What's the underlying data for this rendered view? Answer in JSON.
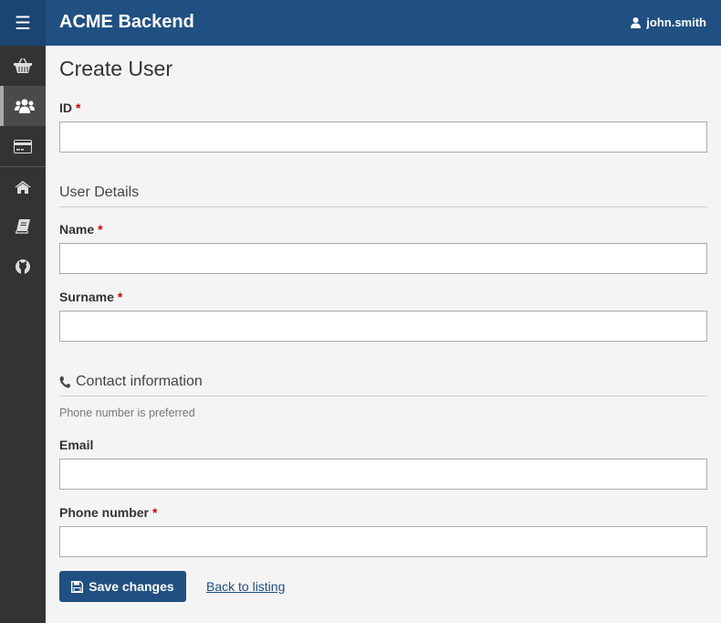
{
  "header": {
    "menu_icon": "hamburger-icon",
    "title": "ACME Backend",
    "user_icon": "user-icon",
    "username": "john.smith",
    "color": "#205081"
  },
  "sidebar": {
    "items": [
      {
        "icon": "basket-icon",
        "active": false
      },
      {
        "icon": "users-icon",
        "active": true
      },
      {
        "icon": "credit-card-icon",
        "active": false
      },
      {
        "icon": "home-icon",
        "active": false
      },
      {
        "icon": "book-icon",
        "active": false
      },
      {
        "icon": "github-icon",
        "active": false
      }
    ]
  },
  "page": {
    "title": "Create User"
  },
  "form": {
    "required_mark": "*",
    "id": {
      "label": "ID",
      "value": ""
    },
    "user_details": {
      "legend": "User Details"
    },
    "name": {
      "label": "Name",
      "value": ""
    },
    "surname": {
      "label": "Surname",
      "value": ""
    },
    "contact": {
      "legend": "Contact information",
      "icon": "phone-icon",
      "help": "Phone number is preferred"
    },
    "email": {
      "label": "Email",
      "value": ""
    },
    "phone": {
      "label": "Phone number",
      "value": ""
    },
    "save_label": "Save changes",
    "back_label": "Back to listing"
  }
}
